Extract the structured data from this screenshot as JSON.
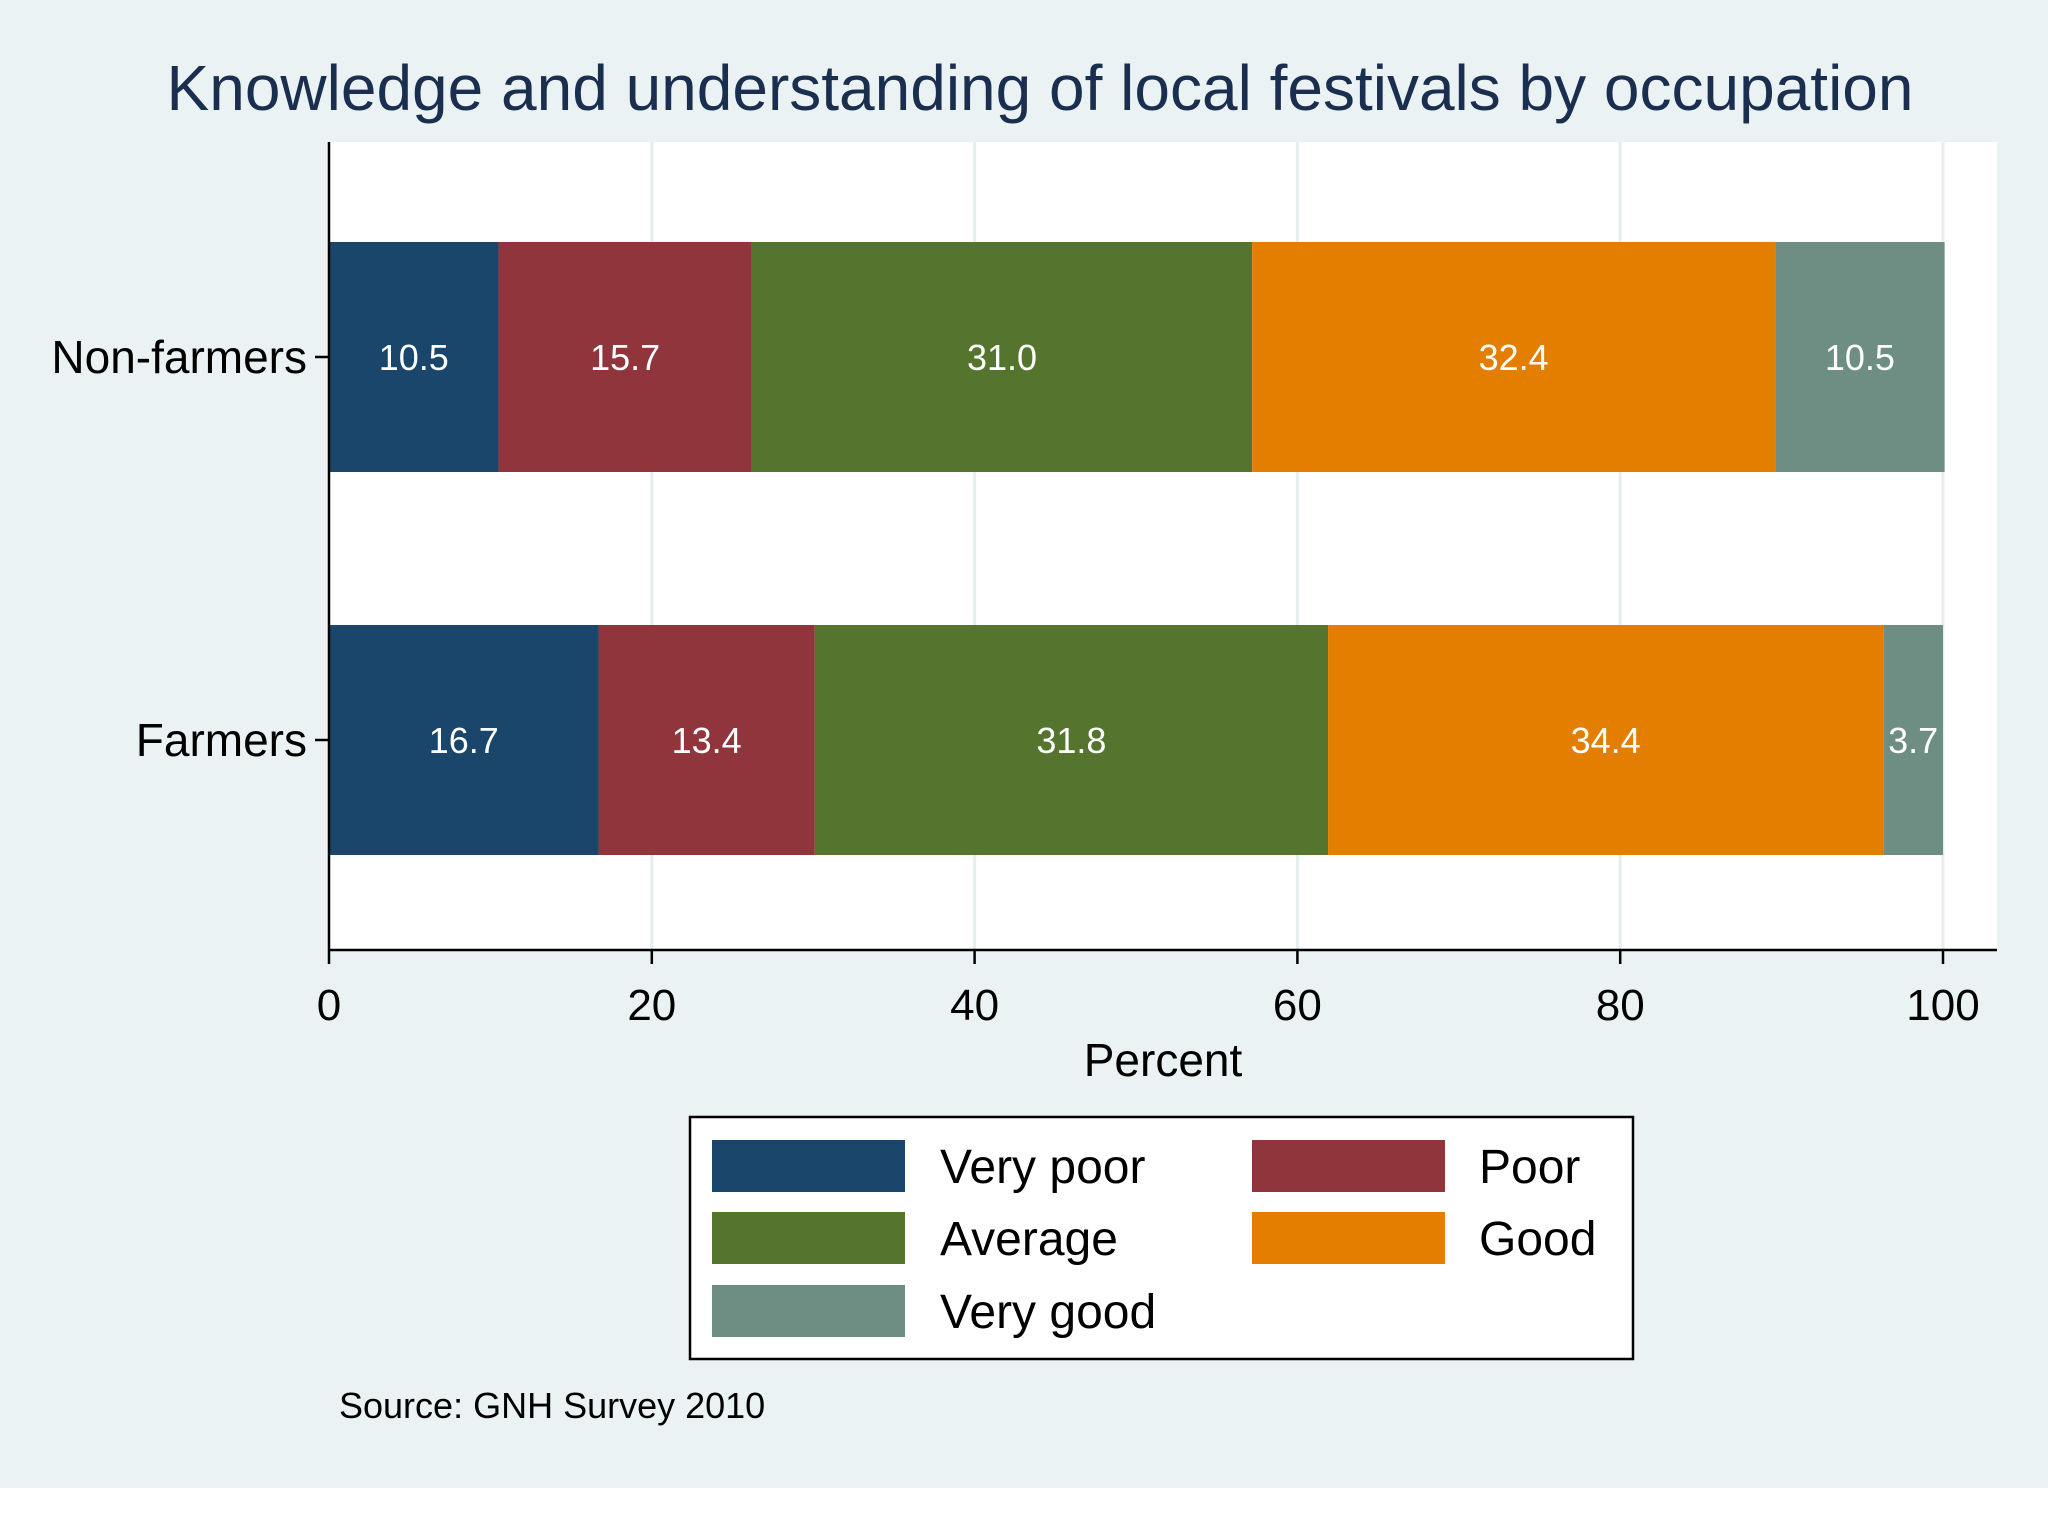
{
  "chart_data": {
    "type": "bar",
    "orientation": "horizontal",
    "stacked": true,
    "title": "Knowledge and understanding of local festivals by occupation",
    "xlabel": "Percent",
    "ylabel": "",
    "xlim": [
      0,
      100
    ],
    "xticks": [
      0,
      20,
      40,
      60,
      80,
      100
    ],
    "xtick_labels": [
      "0",
      "20",
      "40",
      "60",
      "80",
      "100"
    ],
    "grid": true,
    "categories": [
      "Non-farmers",
      "Farmers"
    ],
    "series": [
      {
        "name": "Very poor",
        "color": "#1a466c",
        "values": [
          10.5,
          16.7
        ],
        "labels": [
          "10.5",
          "16.7"
        ]
      },
      {
        "name": "Poor",
        "color": "#90353b",
        "values": [
          15.7,
          13.4
        ],
        "labels": [
          "15.7",
          "13.4"
        ]
      },
      {
        "name": "Average",
        "color": "#55752f",
        "values": [
          31.0,
          31.8
        ],
        "labels": [
          "31.0",
          "31.8"
        ]
      },
      {
        "name": "Good",
        "color": "#e37e00",
        "values": [
          32.4,
          34.4
        ],
        "labels": [
          "32.4",
          "34.4"
        ]
      },
      {
        "name": "Very good",
        "color": "#6e8e84",
        "values": [
          10.5,
          3.7
        ],
        "labels": [
          "10.5",
          "3.7"
        ]
      }
    ],
    "legend_position": "bottom",
    "note": "Source: GNH Survey 2010"
  }
}
